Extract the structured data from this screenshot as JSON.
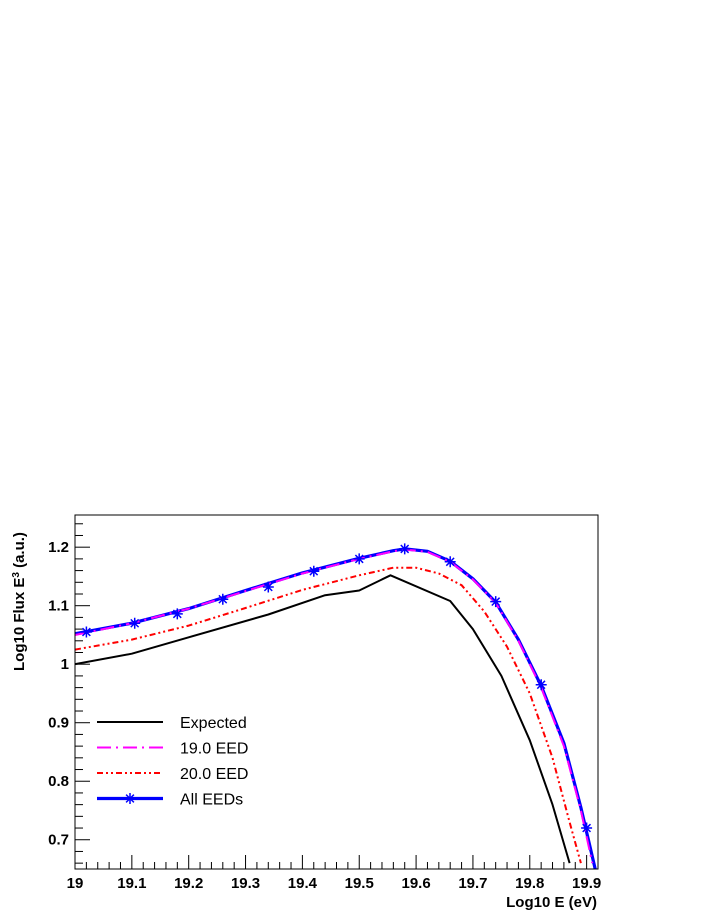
{
  "chart_data": {
    "type": "line",
    "xlabel": "Log10 E (eV)",
    "ylabel_main": "Log10 Flux E",
    "ylabel_sup": "3",
    "ylabel_unit": " (a.u.)",
    "xlim": [
      19.0,
      19.92
    ],
    "ylim": [
      0.65,
      1.255
    ],
    "x_ticks": [
      19,
      19.1,
      19.2,
      19.3,
      19.4,
      19.5,
      19.6,
      19.7,
      19.8,
      19.9
    ],
    "x_tick_labels": [
      "19",
      "19.1",
      "19.2",
      "19.3",
      "19.4",
      "19.5",
      "19.6",
      "19.7",
      "19.8",
      "19.9"
    ],
    "y_ticks": [
      0.7,
      0.8,
      0.9,
      1.0,
      1.1,
      1.2
    ],
    "y_tick_labels": [
      "0.7",
      "0.8",
      "0.9",
      "1",
      "1.1",
      "1.2"
    ],
    "legend_position": "bottom-left",
    "series": [
      {
        "name": "Expected",
        "color": "#000000",
        "style": "solid",
        "x": [
          19.0,
          19.1,
          19.2,
          19.34,
          19.44,
          19.5,
          19.555,
          19.66,
          19.7,
          19.75,
          19.8,
          19.84,
          19.87
        ],
        "y": [
          1.0,
          1.018,
          1.046,
          1.085,
          1.118,
          1.126,
          1.152,
          1.108,
          1.06,
          0.98,
          0.87,
          0.76,
          0.66
        ]
      },
      {
        "name": "19.0 EED",
        "color": "#ff00ff",
        "style": "longdash-dot",
        "x": [
          19.0,
          19.1,
          19.2,
          19.3,
          19.4,
          19.5,
          19.56,
          19.58,
          19.62,
          19.66,
          19.7,
          19.74,
          19.78,
          19.82,
          19.86,
          19.89,
          19.91
        ],
        "y": [
          1.05,
          1.07,
          1.095,
          1.125,
          1.155,
          1.18,
          1.193,
          1.196,
          1.192,
          1.175,
          1.145,
          1.105,
          1.04,
          0.96,
          0.86,
          0.75,
          0.66
        ]
      },
      {
        "name": "20.0 EED",
        "color": "#ff0000",
        "style": "dash-dot-dot",
        "x": [
          19.0,
          19.1,
          19.2,
          19.3,
          19.4,
          19.5,
          19.56,
          19.6,
          19.64,
          19.68,
          19.72,
          19.76,
          19.8,
          19.84,
          19.87,
          19.89
        ],
        "y": [
          1.025,
          1.042,
          1.066,
          1.096,
          1.127,
          1.152,
          1.165,
          1.165,
          1.155,
          1.135,
          1.09,
          1.03,
          0.95,
          0.84,
          0.73,
          0.66
        ]
      },
      {
        "name": "All EEDs",
        "color": "#0000ff",
        "style": "solid-thick-star",
        "x": [
          19.0,
          19.1,
          19.2,
          19.3,
          19.4,
          19.5,
          19.56,
          19.58,
          19.62,
          19.66,
          19.7,
          19.74,
          19.78,
          19.82,
          19.86,
          19.89,
          19.915
        ],
        "y": [
          1.052,
          1.07,
          1.095,
          1.126,
          1.156,
          1.181,
          1.194,
          1.197,
          1.193,
          1.176,
          1.146,
          1.106,
          1.042,
          0.963,
          0.865,
          0.755,
          0.65
        ],
        "markers_x": [
          19.02,
          19.105,
          19.18,
          19.26,
          19.34,
          19.42,
          19.5,
          19.58,
          19.66,
          19.74,
          19.82,
          19.9
        ],
        "markers_y": [
          1.055,
          1.07,
          1.086,
          1.111,
          1.132,
          1.159,
          1.18,
          1.197,
          1.175,
          1.107,
          0.965,
          0.72
        ]
      }
    ]
  }
}
